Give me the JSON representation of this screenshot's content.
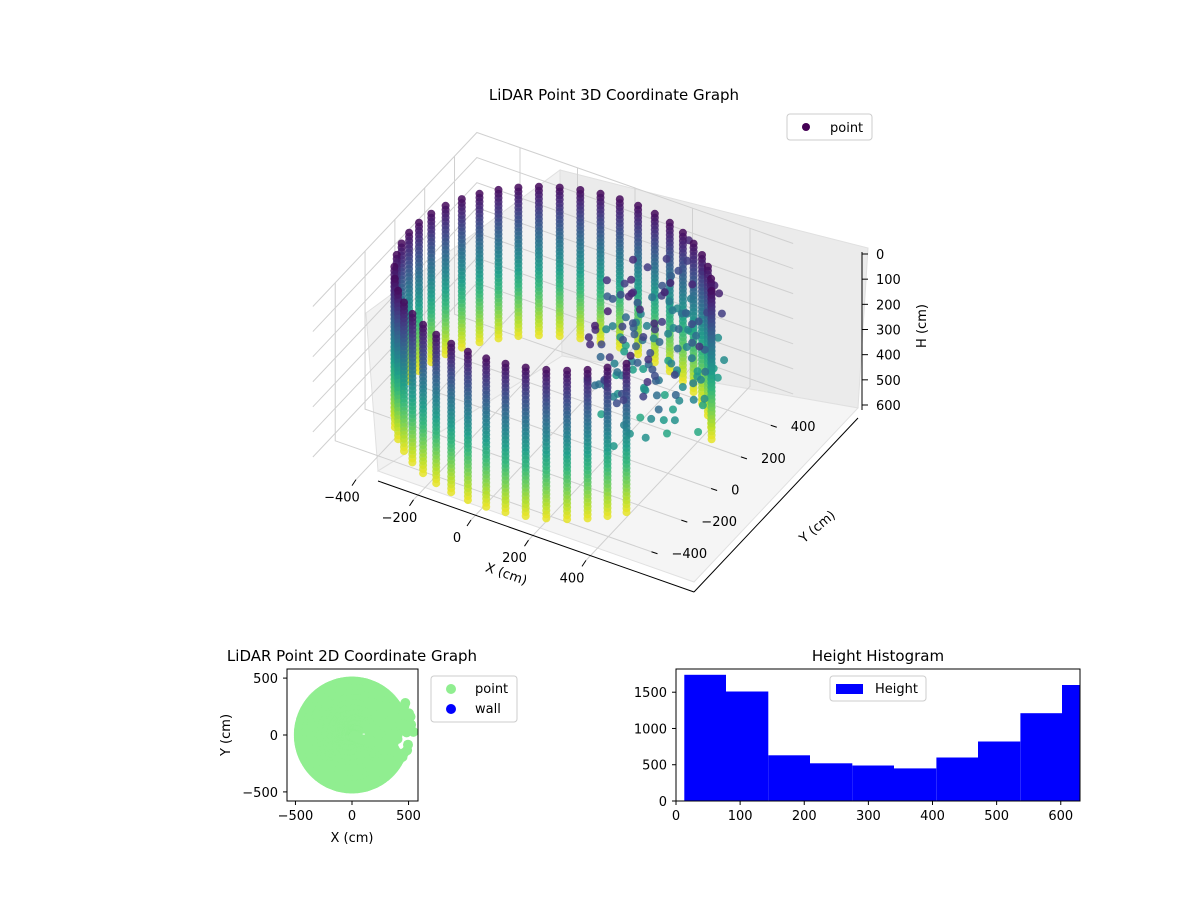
{
  "chart_data": [
    {
      "type": "scatter",
      "title": "LiDAR Point 3D Coordinate Graph",
      "xlabel": "X (cm)",
      "ylabel": "Y (cm)",
      "zlabel": "H (cm)",
      "x_ticks": [
        "−400",
        "−200",
        "0",
        "200",
        "400"
      ],
      "y_ticks": [
        "−400",
        "−200",
        "0",
        "200",
        "400"
      ],
      "z_ticks": [
        "0",
        "100",
        "200",
        "300",
        "400",
        "500",
        "600"
      ],
      "xlim": [
        -550,
        550
      ],
      "ylim": [
        -550,
        550
      ],
      "zlim": [
        0,
        630
      ],
      "z_inverted": true,
      "legend": {
        "entries": [
          "point"
        ],
        "placement": "top-right"
      },
      "colormap": "viridis",
      "grid": true
    },
    {
      "type": "scatter",
      "title": "LiDAR Point 2D Coordinate Graph",
      "xlabel": "X (cm)",
      "ylabel": "Y (cm)",
      "x_ticks": [
        "−500",
        "0",
        "500"
      ],
      "y_ticks": [
        "500",
        "0",
        "−500"
      ],
      "xlim": [
        -580,
        580
      ],
      "ylim": [
        -580,
        580
      ],
      "series": [
        {
          "name": "point",
          "color": "#90ee90"
        },
        {
          "name": "wall",
          "color": "#0000ff"
        }
      ],
      "legend": {
        "placement": "outside-right"
      }
    },
    {
      "type": "bar",
      "title": "Height Histogram",
      "bin_edges": [
        13,
        78,
        144,
        209,
        275,
        340,
        406,
        471,
        537,
        602,
        630
      ],
      "values": [
        1740,
        1510,
        630,
        520,
        490,
        450,
        600,
        820,
        1210,
        1600
      ],
      "x_ticks": [
        "0",
        "100",
        "200",
        "300",
        "400",
        "500",
        "600"
      ],
      "y_ticks": [
        "0",
        "500",
        "1000",
        "1500"
      ],
      "xlim": [
        0,
        630
      ],
      "ylim": [
        0,
        1820
      ],
      "series": [
        {
          "name": "Height",
          "color": "#0000ff"
        }
      ],
      "legend": {
        "placement": "top-center"
      }
    }
  ]
}
